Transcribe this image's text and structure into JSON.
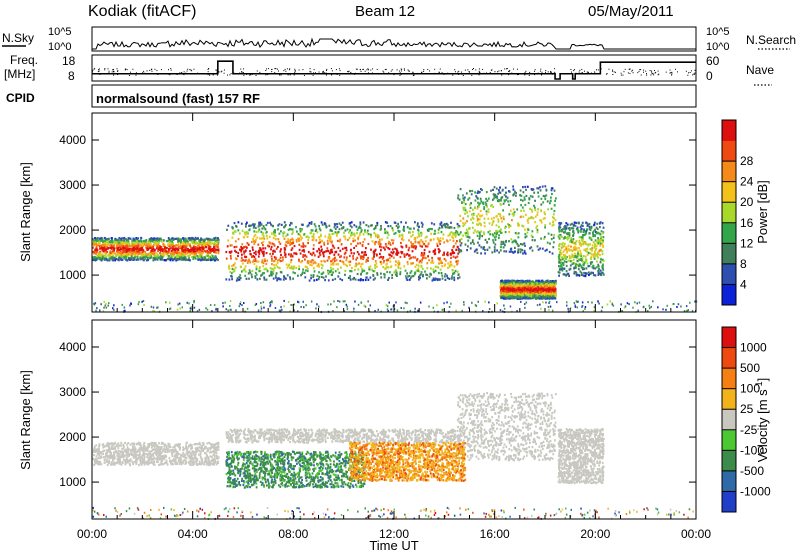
{
  "header": {
    "station": "Kodiak (fitACF)",
    "beam": "Beam 12",
    "date": "05/May/2011"
  },
  "strip_panels": {
    "nsky_label": "N.Sky",
    "nsky_ticks": [
      "10^5",
      "10^0"
    ],
    "nsearch_label": "N.Search",
    "nsearch_ticks": [
      "10^5",
      "10^0"
    ],
    "freq_label": "Freq.",
    "freq_unit": "[MHz]",
    "freq_ticks": [
      "18",
      "8"
    ],
    "nave_label": "Nave",
    "nave_ticks": [
      "60",
      "0"
    ],
    "cpid_label": "CPID",
    "cpid_text": "normalsound (fast) 157 RF"
  },
  "chart_data": [
    {
      "type": "heatmap",
      "name": "power",
      "xlabel": "",
      "ylabel": "Slant Range [km]",
      "x_ticks": [
        "00:00",
        "04:00",
        "08:00",
        "12:00",
        "16:00",
        "20:00",
        "00:00"
      ],
      "y_ticks": [
        "1000",
        "2000",
        "3000",
        "4000"
      ],
      "xlim_hours": [
        0,
        24
      ],
      "ylim_km": [
        180,
        4600
      ],
      "colorbar": {
        "label": "Power [dB]",
        "ticks": [
          "4",
          "8",
          "12",
          "16",
          "20",
          "24",
          "28"
        ],
        "colors": [
          "#0b22d8",
          "#2f4fb0",
          "#3f7f5a",
          "#33a64a",
          "#a8d82a",
          "#f2c21b",
          "#f58a18",
          "#ee4a12",
          "#dd1010"
        ]
      },
      "scatter_regions": [
        {
          "t0": 0.0,
          "t1": 5.0,
          "r0": 1350,
          "r1": 1850,
          "level": "high"
        },
        {
          "t0": 5.3,
          "t1": 14.6,
          "r0": 900,
          "r1": 2200,
          "level": "high"
        },
        {
          "t0": 14.5,
          "t1": 18.4,
          "r0": 1500,
          "r1": 3000,
          "level": "low"
        },
        {
          "t0": 18.5,
          "t1": 20.3,
          "r0": 1000,
          "r1": 2200,
          "level": "low"
        },
        {
          "t0": 16.2,
          "t1": 18.4,
          "r0": 500,
          "r1": 900,
          "level": "high"
        }
      ]
    },
    {
      "type": "heatmap",
      "name": "velocity",
      "xlabel": "Time UT",
      "ylabel": "Slant Range [km]",
      "x_ticks": [
        "00:00",
        "04:00",
        "08:00",
        "12:00",
        "16:00",
        "20:00",
        "00:00"
      ],
      "y_ticks": [
        "1000",
        "2000",
        "3000",
        "4000"
      ],
      "xlim_hours": [
        0,
        24
      ],
      "ylim_km": [
        180,
        4600
      ],
      "colorbar": {
        "label": "Velocity [m s-1]",
        "ticks": [
          "1000",
          "500",
          "100",
          "25",
          "-25",
          "-100",
          "-500",
          "-1000"
        ],
        "colors": [
          "#1f3fc8",
          "#2f6aa8",
          "#3b8c4a",
          "#4cc832",
          "#c8c8c0",
          "#f2b21a",
          "#f57f12",
          "#ee4a10",
          "#dd1010"
        ]
      }
    }
  ]
}
